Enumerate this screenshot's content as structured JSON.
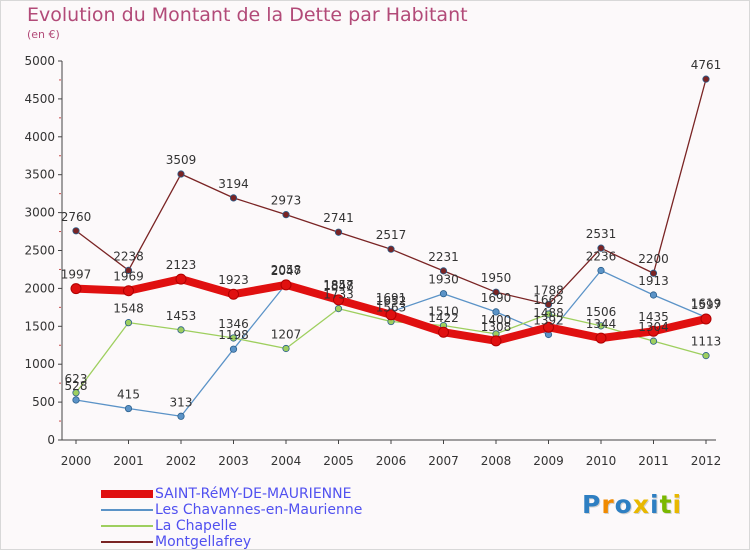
{
  "title": "Evolution du Montant de la Dette par Habitant",
  "subtitle": "(en €)",
  "logo": {
    "text": "Proxiti",
    "colors": [
      "#2e7fc2",
      "#f08a00",
      "#2e7fc2",
      "#e8b800",
      "#2e7fc2",
      "#7ab800",
      "#e8b800"
    ]
  },
  "chart_data": {
    "type": "line",
    "title": "Evolution du Montant de la Dette par Habitant",
    "ylabel": "(en €)",
    "x": [
      "2000",
      "2001",
      "2002",
      "2003",
      "2004",
      "2005",
      "2006",
      "2007",
      "2008",
      "2009",
      "2010",
      "2011",
      "2012"
    ],
    "ylim": [
      0,
      5000
    ],
    "yticks": [
      "0",
      "500",
      "1000",
      "1500",
      "2000",
      "2500",
      "3000",
      "3500",
      "4000",
      "4500",
      "5000"
    ],
    "grid": false,
    "legend_position": "bottom-left",
    "series": [
      {
        "name": "SAINT-RéMY-DE-MAURIENNE",
        "color": "#e01010",
        "values": [
          1997,
          1969,
          2123,
          1923,
          2047,
          1848,
          1652,
          1422,
          1308,
          1488,
          1344,
          1435,
          1597
        ],
        "labels": [
          "1997",
          "1969",
          "2123",
          "1923",
          "2047",
          "1848",
          "1652",
          "1422",
          "1308",
          "1488",
          "1344",
          "1435",
          "1597"
        ]
      },
      {
        "name": "Les Chavannes-en-Maurienne",
        "color": "#5b93c7",
        "values": [
          528,
          415,
          313,
          1198,
          2058,
          1857,
          1691,
          1930,
          1690,
          1392,
          2236,
          1913,
          1619
        ],
        "labels": [
          "528",
          "415",
          "313",
          "1198",
          "2058",
          "1857",
          "1691",
          "1930",
          "1690",
          "1392",
          "2236",
          "1913",
          "1619"
        ]
      },
      {
        "name": "La Chapelle",
        "color": "#9ecf5e",
        "values": [
          623,
          1548,
          1453,
          1346,
          1207,
          1733,
          1563,
          1510,
          1400,
          1662,
          1506,
          1304,
          1113
        ],
        "labels": [
          "623",
          "1548",
          "1453",
          "1346",
          "1207",
          "1733",
          "1563",
          "1510",
          "1400",
          "1662",
          "1506",
          "1304",
          "1113"
        ]
      },
      {
        "name": "Montgellafrey",
        "color": "#7a2424",
        "values": [
          2760,
          2238,
          3509,
          3194,
          2973,
          2741,
          2517,
          2231,
          1950,
          1788,
          2531,
          2200,
          4761
        ],
        "labels": [
          "2760",
          "2238",
          "3509",
          "3194",
          "2973",
          "2741",
          "2517",
          "2231",
          "1950",
          "1788",
          "2531",
          "2200",
          "4761"
        ]
      }
    ]
  }
}
